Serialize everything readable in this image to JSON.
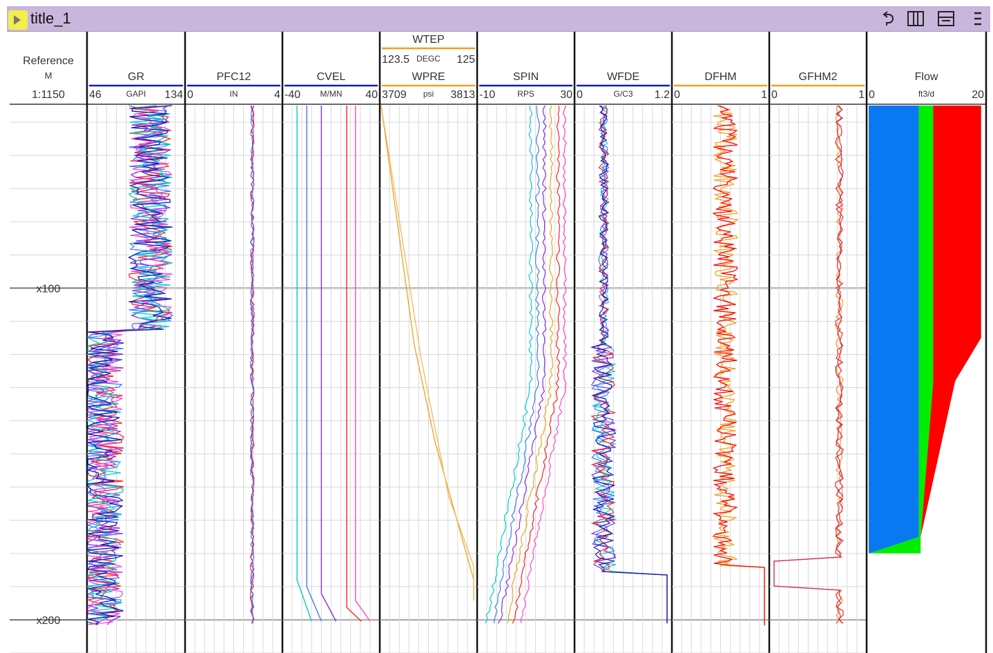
{
  "window": {
    "title": "title_1"
  },
  "toolbar": {
    "icons": [
      "undo-icon",
      "split-vertical-icon",
      "split-horizontal-icon",
      "more-vertical-icon"
    ]
  },
  "colors": {
    "title_bar": "#c9b6dd",
    "accent_blue": "#0b1fb6",
    "accent_orange": "#f0a020",
    "red": "#ff0000",
    "green": "#00ee00",
    "flow_blue": "#0a78f0"
  },
  "chart_data": {
    "type": "line",
    "depth": {
      "unit": "M",
      "scale": "1:1150",
      "range": [
        45,
        210
      ],
      "major_ticks": [
        100,
        200
      ],
      "major_labels": [
        "x100",
        "x200"
      ]
    },
    "reference_track": {
      "name": "Reference",
      "unit": "M",
      "scale": "1:1150"
    },
    "tracks": [
      {
        "id": "GR",
        "headers": [
          {
            "name": "GR",
            "unit": "GAPI",
            "min": "46",
            "max": "134",
            "color": "#0b1fb6"
          }
        ],
        "series_colors": [
          "#3a7bff",
          "#ff2020",
          "#8a2be2",
          "#ff44cc",
          "#00cccc",
          "#0b1fb6"
        ]
      },
      {
        "id": "PFC12",
        "headers": [
          {
            "name": "PFC12",
            "unit": "IN",
            "min": "0",
            "max": "4",
            "color": "#0b1fb6"
          }
        ],
        "series_colors": [
          "#8a2be2",
          "#ff2020",
          "#3a7bff"
        ]
      },
      {
        "id": "CVEL",
        "headers": [
          {
            "name": "CVEL",
            "unit": "M/MN",
            "min": "-40",
            "max": "40",
            "color": "#0b1fb6"
          }
        ],
        "series_colors": [
          "#00cccc",
          "#3a7bff",
          "#8a2be2",
          "#ff44cc",
          "#ff2020"
        ]
      },
      {
        "id": "WTEP-WPRE",
        "headers": [
          {
            "name": "WTEP",
            "unit": "DEGC",
            "min": "123.5",
            "max": "125",
            "color": "#f0a020"
          },
          {
            "name": "WPRE",
            "unit": "psi",
            "min": "3709",
            "max": "3813",
            "color": "#f0a020"
          }
        ],
        "series_colors": [
          "#f0a020",
          "#f5b860"
        ]
      },
      {
        "id": "SPIN",
        "headers": [
          {
            "name": "SPIN",
            "unit": "RPS",
            "min": "-10",
            "max": "30",
            "color": "#0b1fb6"
          }
        ],
        "series_colors": [
          "#00cccc",
          "#3a7bff",
          "#8a2be2",
          "#f0a020",
          "#ff2020",
          "#ff44cc"
        ]
      },
      {
        "id": "WFDE",
        "headers": [
          {
            "name": "WFDE",
            "unit": "G/C3",
            "min": "0",
            "max": "1.2",
            "color": "#0b1fb6"
          }
        ],
        "series_colors": [
          "#00cccc",
          "#3a7bff",
          "#8a2be2",
          "#ff2020",
          "#0b1fb6"
        ]
      },
      {
        "id": "DFHM",
        "headers": [
          {
            "name": "DFHM",
            "unit": "",
            "min": "0",
            "max": "1",
            "color": "#f0a020"
          }
        ],
        "series_colors": [
          "#f0a020",
          "#ff0000"
        ]
      },
      {
        "id": "GFHM2",
        "headers": [
          {
            "name": "GFHM2",
            "unit": "",
            "min": "0",
            "max": "1",
            "color": "#f0a020"
          }
        ],
        "series_colors": [
          "#f0a020",
          "#ff2020",
          "#cc3355"
        ]
      },
      {
        "id": "Flow",
        "headers": [
          {
            "name": "Flow",
            "unit": "ft3/d",
            "min": "0",
            "max": "20",
            "color": "#ffffff"
          }
        ],
        "flow_profile": {
          "depths": [
            45,
            115,
            128,
            175,
            180
          ],
          "blue_end": [
            8.7,
            8.7,
            8.7,
            8.7,
            0.0
          ],
          "green_end": [
            11.2,
            11.2,
            11.2,
            9.0,
            9.0
          ],
          "red_end": [
            19.5,
            19.5,
            15.0,
            9.0,
            9.0
          ],
          "colors": [
            "#0a78f0",
            "#00ee00",
            "#ff0000"
          ]
        }
      }
    ]
  }
}
